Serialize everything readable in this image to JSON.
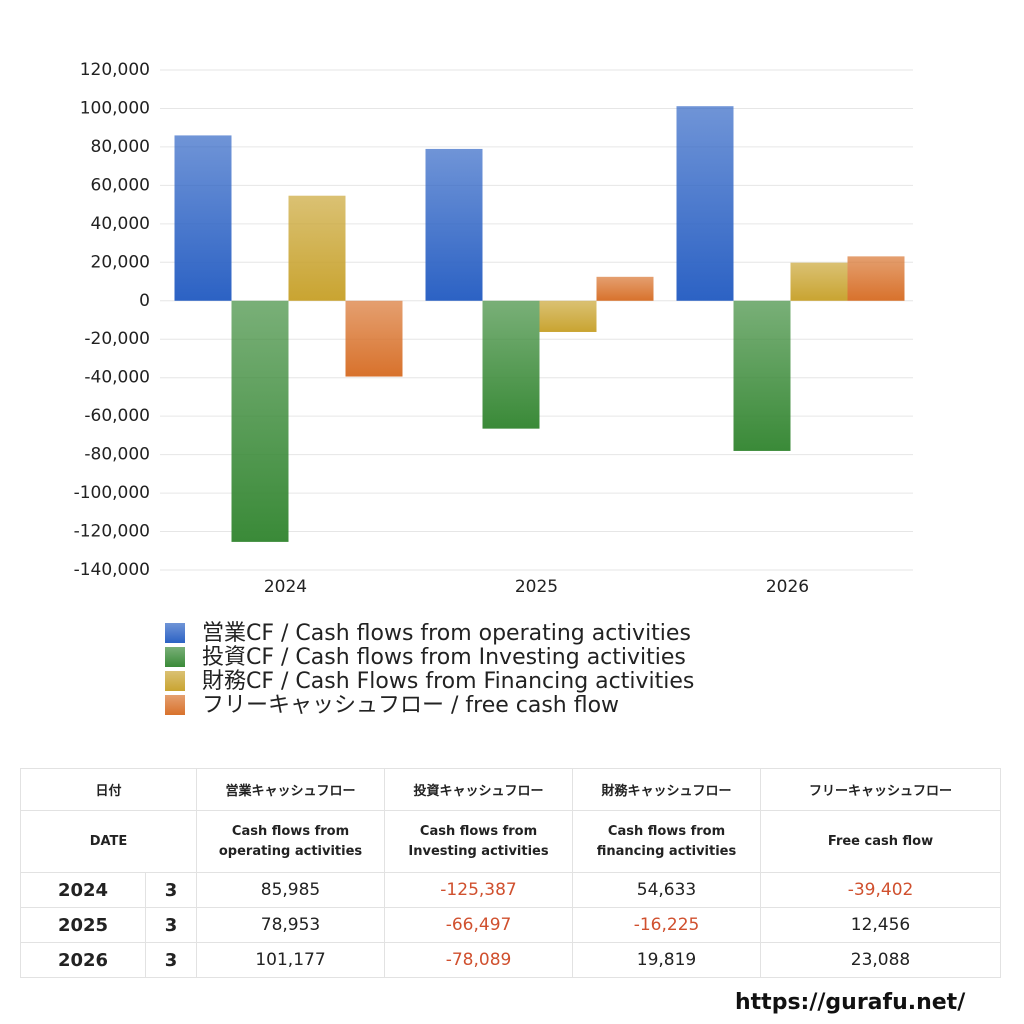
{
  "chart_data": {
    "type": "bar",
    "categories": [
      "2024",
      "2025",
      "2026"
    ],
    "series": [
      {
        "name": "営業CF / Cash flows from operating activities",
        "color": "#2c62c4",
        "values": [
          85985,
          78953,
          101177
        ]
      },
      {
        "name": "投資CF / Cash flows from Investing activities",
        "color": "#3a8a38",
        "values": [
          -125387,
          -66497,
          -78089
        ]
      },
      {
        "name": "財務CF / Cash Flows from Financing activities",
        "color": "#c9a431",
        "values": [
          54633,
          -16225,
          19819
        ]
      },
      {
        "name": "フリーキャッシュフロー / free cash flow",
        "color": "#d8722c",
        "values": [
          -39402,
          12456,
          23088
        ]
      }
    ],
    "ylim": [
      -140000,
      120000
    ],
    "yticks": [
      {
        "value": -140000,
        "label": "-140,000"
      },
      {
        "value": -120000,
        "label": "-120,000"
      },
      {
        "value": -100000,
        "label": "-100,000"
      },
      {
        "value": -80000,
        "label": "-80,000"
      },
      {
        "value": -60000,
        "label": "-60,000"
      },
      {
        "value": -40000,
        "label": "-40,000"
      },
      {
        "value": -20000,
        "label": "-20,000"
      },
      0,
      {
        "value": 20000,
        "label": "20,000"
      },
      {
        "value": 40000,
        "label": "40,000"
      },
      {
        "value": 60000,
        "label": "60,000"
      },
      {
        "value": 80000,
        "label": "80,000"
      },
      {
        "value": 100000,
        "label": "100,000"
      },
      {
        "value": 120000,
        "label": "120,000"
      }
    ],
    "grid": true,
    "legend": "bottom"
  },
  "table": {
    "header": [
      [
        "日付",
        "営業キャッシュフロー",
        "投資キャッシュフロー",
        "財務キャッシュフロー",
        "フリーキャッシュフロー"
      ],
      [
        "DATE",
        "Cash flows from\noperating activities",
        "Cash flows from\nInvesting activities",
        "Cash flows from\nfinancing activities",
        "Free cash flow"
      ]
    ],
    "rows": [
      [
        "2024",
        "3",
        "85,985",
        "-125,387",
        "54,633",
        "-39,402"
      ],
      [
        "2025",
        "3",
        "78,953",
        "-66,497",
        "-16,225",
        "12,456"
      ],
      [
        "2026",
        "3",
        "101,177",
        "-78,089",
        "19,819",
        "23,088"
      ]
    ]
  },
  "footer": "https://gurafu.net/"
}
